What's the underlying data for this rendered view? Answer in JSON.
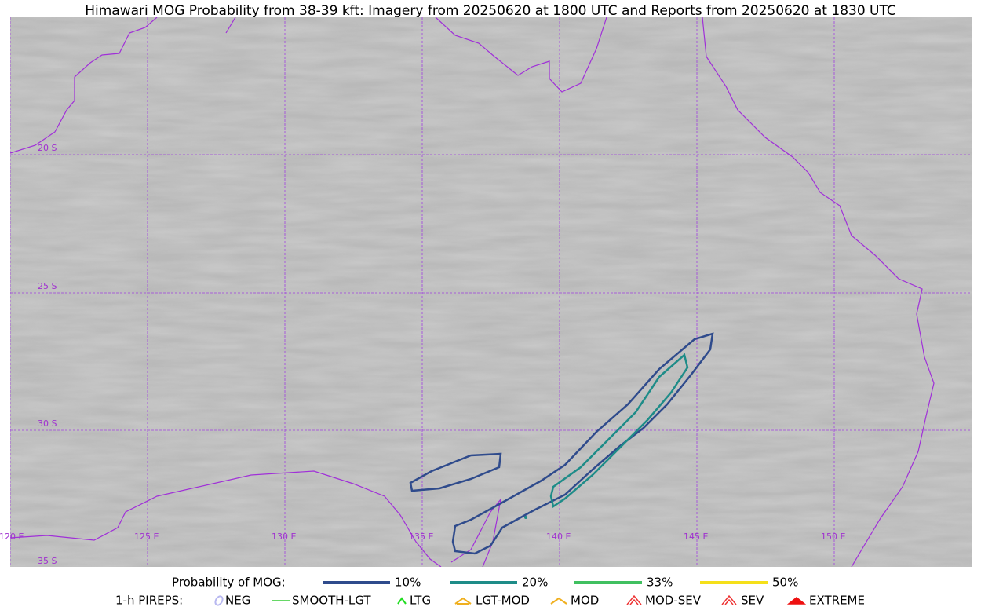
{
  "title": "Himawari MOG Probability from 38-39 kft: Imagery from 20250620 at 1800 UTC and Reports from 20250620 at 1830 UTC",
  "lat_labels": [
    "20 S",
    "25 S",
    "30 S",
    "35 S"
  ],
  "lon_labels": [
    "120 E",
    "125 E",
    "130 E",
    "135 E",
    "140 E",
    "145 E",
    "150 E"
  ],
  "probability_legend": {
    "title": "Probability of MOG:",
    "items": [
      {
        "name": "10%",
        "color": "#2f4b8c"
      },
      {
        "name": "20%",
        "color": "#1e8c88"
      },
      {
        "name": "33%",
        "color": "#40c060"
      },
      {
        "name": "50%",
        "color": "#f5e01a"
      }
    ]
  },
  "pirep_legend": {
    "title": "1-h PIREPS:",
    "items": [
      {
        "name": "NEG",
        "color": "#b8b8f0"
      },
      {
        "name": "SMOOTH-LGT",
        "color": "#33cc33"
      },
      {
        "name": "LTG",
        "color": "#22dd22"
      },
      {
        "name": "LGT-MOD",
        "color": "#f0b020"
      },
      {
        "name": "MOD",
        "color": "#f0b020"
      },
      {
        "name": "MOD-SEV",
        "color": "#ee3333"
      },
      {
        "name": "SEV",
        "color": "#ee3333"
      },
      {
        "name": "EXTREME",
        "color": "#ee1111"
      }
    ]
  }
}
